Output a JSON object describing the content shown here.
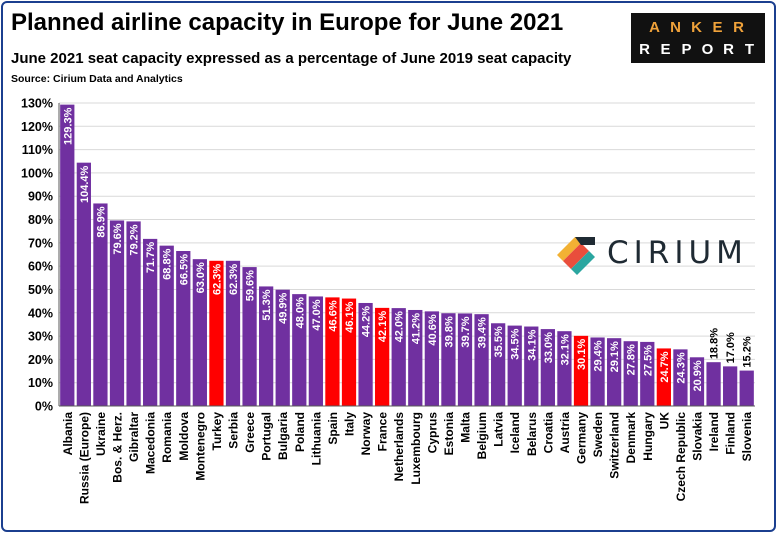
{
  "header": {
    "title": "Planned airline capacity in Europe for June 2021",
    "subtitle": "June 2021 seat capacity expressed as a percentage of June 2019 seat capacity",
    "source": "Source: Cirium Data and Analytics"
  },
  "logos": {
    "anker_top": [
      "A",
      "N",
      "K",
      "E",
      "R"
    ],
    "anker_bottom": [
      "R",
      "E",
      "P",
      "O",
      "R",
      "T"
    ],
    "cirium": "CIRIUM"
  },
  "colors": {
    "bar": "#7030a0",
    "highlight": "#ff0000",
    "grid": "#d9d9d9"
  },
  "chart_data": {
    "type": "bar",
    "title": "Planned airline capacity in Europe for June 2021",
    "xlabel": "",
    "ylabel": "",
    "ylim": [
      0,
      130
    ],
    "ytick_step": 10,
    "ytick_format": "{v}%",
    "grid": true,
    "categories": [
      "Albania",
      "Russia (Europe)",
      "Ukraine",
      "Bos. & Herz.",
      "Gibraltar",
      "Macedonia",
      "Romania",
      "Moldova",
      "Montenegro",
      "Turkey",
      "Serbia",
      "Greece",
      "Portugal",
      "Bulgaria",
      "Poland",
      "Lithuania",
      "Spain",
      "Italy",
      "Norway",
      "France",
      "Netherlands",
      "Luxembourg",
      "Cyprus",
      "Estonia",
      "Malta",
      "Belgium",
      "Latvia",
      "Iceland",
      "Belarus",
      "Croatia",
      "Austria",
      "Germany",
      "Sweden",
      "Switzerland",
      "Denmark",
      "Hungary",
      "UK",
      "Czech Republic",
      "Slovakia",
      "Ireland",
      "Finland",
      "Slovenia"
    ],
    "values": [
      129.3,
      104.4,
      86.9,
      79.6,
      79.2,
      71.7,
      68.8,
      66.5,
      63.0,
      62.3,
      62.3,
      59.6,
      51.3,
      49.9,
      48.0,
      47.0,
      46.6,
      46.1,
      44.2,
      42.1,
      42.0,
      41.2,
      40.6,
      39.8,
      39.7,
      39.4,
      35.5,
      34.5,
      34.1,
      33.0,
      32.1,
      30.1,
      29.4,
      29.1,
      27.8,
      27.5,
      24.7,
      24.3,
      20.9,
      18.8,
      17.0,
      15.2
    ],
    "labels": [
      "129.3%",
      "104.4%",
      "86.9%",
      "79.6%",
      "79.2%",
      "71.7%",
      "68.8%",
      "66.5%",
      "63.0%",
      "62.3%",
      "62.3%",
      "59.6%",
      "51.3%",
      "49.9%",
      "48.0%",
      "47.0%",
      "46.6%",
      "46.1%",
      "44.2%",
      "42.1%",
      "42.0%",
      "41.2%",
      "40.6%",
      "39.8%",
      "39.7%",
      "39.4%",
      "35.5%",
      "34.5%",
      "34.1%",
      "33.0%",
      "32.1%",
      "30.1%",
      "29.4%",
      "29.1%",
      "27.8%",
      "27.5%",
      "24.7%",
      "24.3%",
      "20.9%",
      "18.8%",
      "17.0%",
      "15.2%"
    ],
    "highlighted": [
      "Turkey",
      "Spain",
      "Italy",
      "France",
      "Germany",
      "UK"
    ],
    "labels_above_bar": [
      "Ireland",
      "Finland",
      "Slovenia"
    ]
  }
}
